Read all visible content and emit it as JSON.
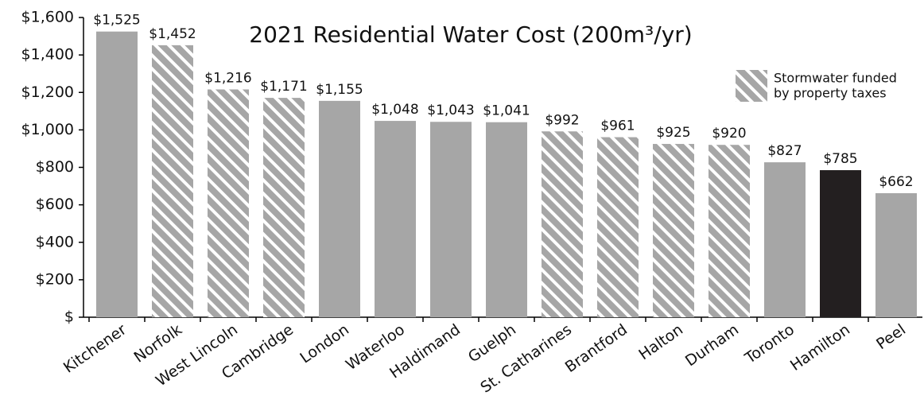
{
  "chart_data": {
    "type": "bar",
    "title": "2021 Residential Water Cost (200m³/yr)",
    "categories": [
      "Kitchener",
      "Norfolk",
      "West Lincoln",
      "Cambridge",
      "London",
      "Waterloo",
      "Haldimand",
      "Guelph",
      "St. Catharines",
      "Brantford",
      "Halton",
      "Durham",
      "Toronto",
      "Hamilton",
      "Peel"
    ],
    "values": [
      1525,
      1452,
      1216,
      1171,
      1155,
      1048,
      1043,
      1041,
      992,
      961,
      925,
      920,
      827,
      785,
      662
    ],
    "value_labels": [
      "$1,525",
      "$1,452",
      "$1,216",
      "$1,171",
      "$1,155",
      "$1,048",
      "$1,043",
      "$1,041",
      "$992",
      "$961",
      "$925",
      "$920",
      "$827",
      "$785",
      "$662"
    ],
    "colors": [
      "#a6a6a6",
      "#a6a6a6",
      "#a6a6a6",
      "#a6a6a6",
      "#a6a6a6",
      "#a6a6a6",
      "#a6a6a6",
      "#a6a6a6",
      "#a6a6a6",
      "#a6a6a6",
      "#a6a6a6",
      "#a6a6a6",
      "#a6a6a6",
      "#231f20",
      "#a6a6a6"
    ],
    "hatched": [
      false,
      true,
      true,
      true,
      false,
      false,
      false,
      false,
      true,
      true,
      true,
      true,
      false,
      false,
      false
    ],
    "legend_label": [
      "Stormwater funded",
      "by property taxes"
    ],
    "ylim": [
      0,
      1600
    ],
    "yticks": [
      {
        "value": 0,
        "label": "$"
      },
      {
        "value": 200,
        "label": "$200"
      },
      {
        "value": 400,
        "label": "$400"
      },
      {
        "value": 600,
        "label": "$600"
      },
      {
        "value": 800,
        "label": "$800"
      },
      {
        "value": 1000,
        "label": "$1,000"
      },
      {
        "value": 1200,
        "label": "$1,200"
      },
      {
        "value": 1400,
        "label": "$1,400"
      },
      {
        "value": 1600,
        "label": "$1,600"
      }
    ],
    "grid": false
  }
}
